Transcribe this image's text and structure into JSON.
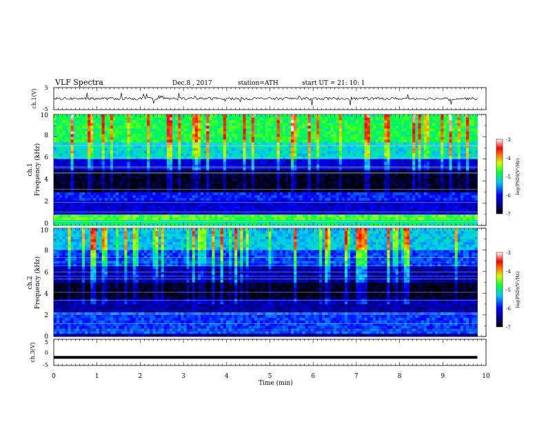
{
  "header": {
    "title": "VLF  Spectra",
    "date": "Dec.8  , 2017",
    "station": "station=ATH",
    "start": "start  UT  =   21: 10: 1"
  },
  "chart_data": [
    {
      "type": "line",
      "name": "ch1-waveform",
      "ylabel": "ch.1(V)",
      "ylim": [
        -5,
        5
      ],
      "y_ticks": [
        "5",
        "-5"
      ],
      "xlim": [
        0,
        10
      ],
      "approx_level": 0,
      "trace_extent_min": [
        0,
        9.8
      ]
    },
    {
      "type": "heatmap",
      "name": "ch1-spectrogram",
      "ylabel": "ch.1\nFrequency  (kHz)",
      "ylim": [
        0,
        10
      ],
      "y_ticks": [
        "0",
        "2",
        "4",
        "6",
        "8",
        "10"
      ],
      "xlim": [
        0,
        10
      ],
      "data_extent_min": [
        0,
        9.8
      ],
      "colorbar": {
        "label": "log(PSD)(V²/Hz)",
        "ticks": [
          "-3",
          "-4",
          "-5",
          "-6",
          "-7"
        ],
        "range": [
          -7,
          -3
        ]
      },
      "frequency_bands_khz": [
        {
          "range": [
            0,
            0.5
          ],
          "level": -5.0
        },
        {
          "range": [
            0.5,
            1.0
          ],
          "level": -4.6
        },
        {
          "range": [
            1.0,
            2.2
          ],
          "level": -6.2
        },
        {
          "range": [
            2.2,
            3.0
          ],
          "level": -5.9
        },
        {
          "range": [
            3.0,
            5.0
          ],
          "level": -6.9
        },
        {
          "range": [
            5.0,
            6.0
          ],
          "level": -6.2
        },
        {
          "range": [
            6.0,
            7.5
          ],
          "level": -5.2
        },
        {
          "range": [
            7.5,
            10.0
          ],
          "level": -4.8
        }
      ]
    },
    {
      "type": "heatmap",
      "name": "ch2-spectrogram",
      "ylabel": "ch.2\nFrequency  (kHz)",
      "ylim": [
        0,
        10
      ],
      "y_ticks": [
        "0",
        "2",
        "4",
        "6",
        "8",
        "10"
      ],
      "xlim": [
        0,
        10
      ],
      "data_extent_min": [
        0,
        9.8
      ],
      "colorbar": {
        "label": "log(PSD)(V²/Hz)",
        "ticks": [
          "-3",
          "-4",
          "-5",
          "-6",
          "-7"
        ],
        "range": [
          -7,
          -3
        ]
      },
      "frequency_bands_khz": [
        {
          "range": [
            0,
            0.3
          ],
          "level": -6.5
        },
        {
          "range": [
            0.3,
            2.2
          ],
          "level": -5.8
        },
        {
          "range": [
            2.2,
            3.5
          ],
          "level": -6.4
        },
        {
          "range": [
            3.5,
            5.0
          ],
          "level": -6.9
        },
        {
          "range": [
            5.0,
            6.5
          ],
          "level": -6.4
        },
        {
          "range": [
            6.5,
            8.0
          ],
          "level": -5.8
        },
        {
          "range": [
            8.0,
            10.0
          ],
          "level": -5.3
        }
      ]
    },
    {
      "type": "line",
      "name": "ch3-waveform",
      "ylabel": "ch.3(V)",
      "ylim": [
        -5,
        5
      ],
      "y_ticks": [
        "5",
        "0",
        "-5"
      ],
      "xlim": [
        0,
        10
      ],
      "approx_level": -1.9,
      "trace_extent_min": [
        0,
        9.8
      ]
    }
  ],
  "xaxis": {
    "label": "Time  (min)",
    "ticks": [
      "0",
      "1",
      "2",
      "3",
      "4",
      "5",
      "6",
      "7",
      "8",
      "9",
      "10"
    ]
  }
}
